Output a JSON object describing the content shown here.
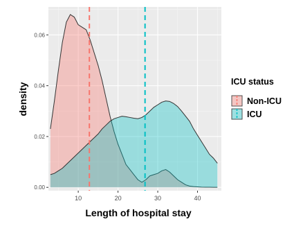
{
  "chart_data": {
    "type": "area",
    "title": "",
    "xlabel": "Length of hospital stay",
    "ylabel": "density",
    "xlim": [
      2.5,
      46
    ],
    "ylim": [
      -0.0013,
      0.071
    ],
    "x_ticks": [
      10,
      20,
      30,
      40
    ],
    "x_tick_labels": [
      "10",
      "20",
      "30",
      "40"
    ],
    "y_ticks": [
      0.0,
      0.02,
      0.04,
      0.06
    ],
    "y_tick_labels": [
      "0.00",
      "0.02",
      "0.04",
      "0.06"
    ],
    "grid": true,
    "legend": {
      "title": "ICU status",
      "placement": "right",
      "entries": [
        "Non-ICU",
        "ICU"
      ]
    },
    "series": [
      {
        "name": "Non-ICU",
        "fill": "#F8766D",
        "mean_line": 12.8,
        "x": [
          3,
          4,
          5,
          6,
          7,
          8,
          9,
          10,
          11,
          12,
          13,
          14,
          15,
          16,
          17,
          18,
          19,
          20,
          21,
          22,
          23,
          24,
          25,
          26,
          27,
          28,
          29,
          30,
          31,
          32,
          33,
          34,
          35,
          36,
          37,
          38,
          39,
          40,
          41,
          42,
          43,
          44,
          45
        ],
        "y": [
          0.023,
          0.034,
          0.046,
          0.057,
          0.065,
          0.068,
          0.067,
          0.064,
          0.063,
          0.062,
          0.058,
          0.053,
          0.048,
          0.042,
          0.035,
          0.028,
          0.022,
          0.017,
          0.013,
          0.009,
          0.007,
          0.005,
          0.003,
          0.002,
          0.003,
          0.0045,
          0.005,
          0.0055,
          0.0065,
          0.007,
          0.006,
          0.0045,
          0.003,
          0.002,
          0.001,
          0.0005,
          0.0003,
          0.0002,
          0.0001,
          8e-05,
          5e-05,
          3e-05,
          2e-05
        ]
      },
      {
        "name": "ICU",
        "fill": "#00BFC4",
        "mean_line": 26.8,
        "x": [
          3,
          4,
          5,
          6,
          7,
          8,
          9,
          10,
          11,
          12,
          13,
          14,
          15,
          16,
          17,
          18,
          19,
          20,
          21,
          22,
          23,
          24,
          25,
          26,
          27,
          28,
          29,
          30,
          31,
          32,
          33,
          34,
          35,
          36,
          37,
          38,
          39,
          40,
          41,
          42,
          43,
          44,
          45
        ],
        "y": [
          0.005,
          0.0055,
          0.0065,
          0.0075,
          0.009,
          0.0105,
          0.012,
          0.0135,
          0.015,
          0.0165,
          0.018,
          0.0195,
          0.021,
          0.023,
          0.0245,
          0.026,
          0.027,
          0.0275,
          0.028,
          0.0278,
          0.0275,
          0.0272,
          0.027,
          0.0275,
          0.0285,
          0.03,
          0.0315,
          0.0325,
          0.0335,
          0.034,
          0.0338,
          0.033,
          0.0318,
          0.03,
          0.028,
          0.026,
          0.023,
          0.0205,
          0.018,
          0.0155,
          0.013,
          0.0115,
          0.0095
        ]
      }
    ]
  }
}
